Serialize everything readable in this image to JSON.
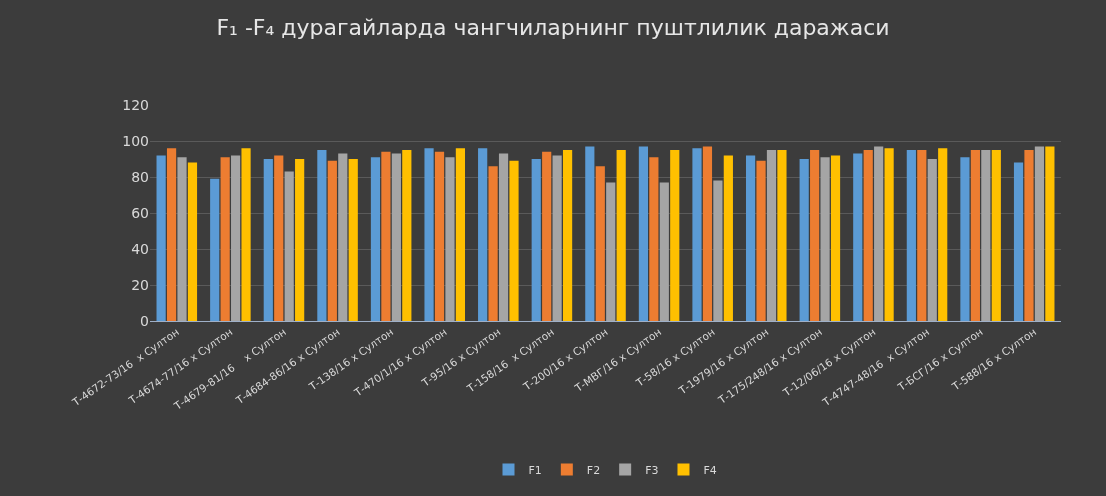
{
  "chart_data": {
    "type": "bar",
    "title": "F₁ -F₄ дурагайларда чангчиларнинг пуштлилик даражаси",
    "categories": [
      "Т-4672-73/16  х Султон",
      "Т-4674-77/16 х Султон",
      "Т-4679-81/16    х Султон",
      "Т-4684-86/16 х Султон",
      "Т-138/16 х Султон",
      "Т-470/1/16 х Султон",
      "Т-95/16 х Султон",
      "Т-158/16  х Султон",
      "Т-200/16 х Султон",
      "Т-МВГ/16 х Султон",
      "Т-58/16 х Султон",
      "Т-1979/16 х Султон",
      "Т-175/248/16 х Султон",
      "Т-12/06/16 х Султон",
      "Т-4747-48/16  х Султон",
      "Т-БСГ/16 х Султон",
      "Т-588/16 х Султон"
    ],
    "series": [
      {
        "name": "F1",
        "color": "#5b9bd5",
        "values": [
          92,
          79,
          90,
          95,
          91,
          96,
          96,
          90,
          97,
          97,
          96,
          92,
          90,
          93,
          95,
          91,
          88
        ]
      },
      {
        "name": "F2",
        "color": "#ed7d31",
        "values": [
          96,
          91,
          92,
          89,
          94,
          94,
          86,
          94,
          86,
          91,
          97,
          89,
          95,
          95,
          95,
          95,
          95
        ]
      },
      {
        "name": "F3",
        "color": "#a5a5a5",
        "values": [
          91,
          92,
          83,
          93,
          93,
          91,
          93,
          92,
          77,
          77,
          78,
          95,
          91,
          97,
          90,
          95,
          97
        ]
      },
      {
        "name": "F4",
        "color": "#ffc000",
        "values": [
          88,
          96,
          90,
          90,
          95,
          96,
          89,
          95,
          95,
          95,
          92,
          95,
          92,
          96,
          96,
          95,
          97
        ]
      }
    ],
    "ylim": [
      0,
      120
    ],
    "yticks": [
      0,
      20,
      40,
      60,
      80,
      100,
      120
    ],
    "grid": "y",
    "legend": "bottom"
  }
}
